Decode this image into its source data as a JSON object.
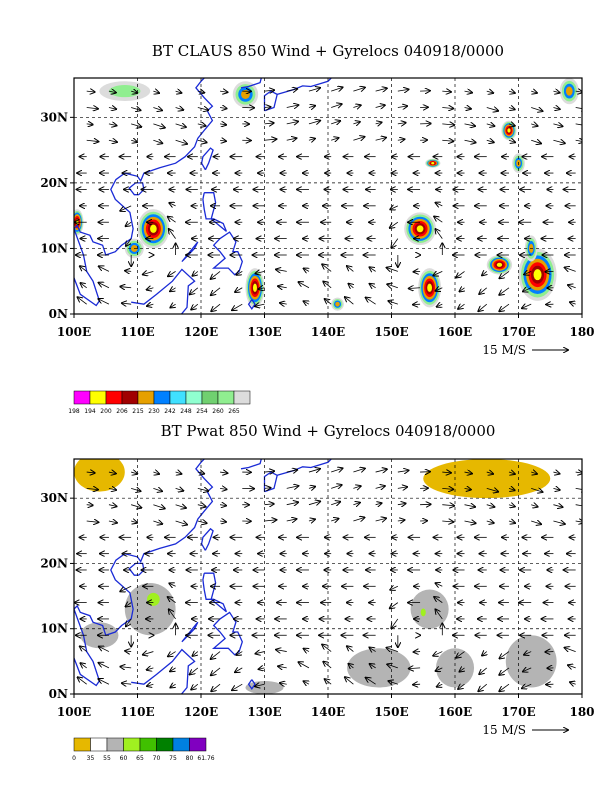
{
  "chart_data": [
    {
      "type": "heatmap",
      "title": "BT CLAUS 850 Wind + Gyrelocs 040918/0000",
      "x_ticks": [
        "100E",
        "110E",
        "120E",
        "130E",
        "140E",
        "150E",
        "160E",
        "170E",
        "180"
      ],
      "y_ticks": [
        "0N",
        "10N",
        "20N",
        "30N"
      ],
      "xlim": [
        100,
        180
      ],
      "ylim": [
        0,
        36
      ],
      "grid": true,
      "vector_scale_label": "15 M/S",
      "legend": {
        "values": [
          "198",
          "194",
          "200",
          "206",
          "215",
          "230",
          "242",
          "248",
          "254",
          "260",
          "265"
        ],
        "colors": [
          "#ff00ff",
          "#ffff00",
          "#ff0000",
          "#a00000",
          "#e6a000",
          "#0080ff",
          "#40e0ff",
          "#90ffd0",
          "#70d070",
          "#90ee90",
          "#dcdcdc"
        ]
      },
      "features": [
        {
          "lon": 112.5,
          "lat": 13,
          "rx": 2.5,
          "ry": 3,
          "level": "core"
        },
        {
          "lon": 128.5,
          "lat": 4,
          "rx": 1.5,
          "ry": 3,
          "level": "core"
        },
        {
          "lon": 141.5,
          "lat": 1.5,
          "rx": 1,
          "ry": 1,
          "level": "warm"
        },
        {
          "lon": 154.5,
          "lat": 13,
          "rx": 2.5,
          "ry": 2.5,
          "level": "core"
        },
        {
          "lon": 156,
          "lat": 4,
          "rx": 1.8,
          "ry": 3,
          "level": "core"
        },
        {
          "lon": 168.5,
          "lat": 28,
          "rx": 1.2,
          "ry": 1.5,
          "level": "core"
        },
        {
          "lon": 167,
          "lat": 7.5,
          "rx": 2,
          "ry": 1.5,
          "level": "core"
        },
        {
          "lon": 173,
          "lat": 6,
          "rx": 3,
          "ry": 4,
          "level": "core"
        },
        {
          "lon": 172,
          "lat": 10,
          "rx": 1,
          "ry": 2,
          "level": "warm"
        },
        {
          "lon": 156.5,
          "lat": 23,
          "rx": 1.2,
          "ry": 0.7,
          "level": "core"
        },
        {
          "lon": 170,
          "lat": 23,
          "rx": 1,
          "ry": 1.5,
          "level": "warm"
        },
        {
          "lon": 178,
          "lat": 34,
          "rx": 1.5,
          "ry": 2,
          "level": "warm"
        },
        {
          "lon": 108,
          "lat": 34,
          "rx": 4,
          "ry": 1.5,
          "level": "cool"
        },
        {
          "lon": 127,
          "lat": 33.5,
          "rx": 2,
          "ry": 2,
          "level": "warm"
        },
        {
          "lon": 100.5,
          "lat": 14,
          "rx": 1,
          "ry": 2,
          "level": "core"
        },
        {
          "lon": 109.5,
          "lat": 10,
          "rx": 1.5,
          "ry": 1.5,
          "level": "warm"
        }
      ]
    },
    {
      "type": "heatmap",
      "title": "BT Pwat 850 Wind + Gyrelocs 040918/0000",
      "x_ticks": [
        "100E",
        "110E",
        "120E",
        "130E",
        "140E",
        "150E",
        "160E",
        "170E",
        "180"
      ],
      "y_ticks": [
        "0N",
        "10N",
        "20N",
        "30N"
      ],
      "xlim": [
        100,
        180
      ],
      "ylim": [
        0,
        36
      ],
      "grid": true,
      "vector_scale_label": "15 M/S",
      "legend": {
        "values": [
          "0",
          "35",
          "55",
          "60",
          "65",
          "70",
          "75",
          "80",
          "61.76"
        ],
        "colors": [
          "#e6b800",
          "#ffffff",
          "#b4b4b4",
          "#a0f020",
          "#40c000",
          "#008000",
          "#0080e0",
          "#8000c0"
        ]
      },
      "features": [
        {
          "lon": 104,
          "lat": 34,
          "rx": 4,
          "ry": 3,
          "level": "dry"
        },
        {
          "lon": 165,
          "lat": 33,
          "rx": 10,
          "ry": 3,
          "level": "dry"
        },
        {
          "lon": 112,
          "lat": 13,
          "rx": 4,
          "ry": 4,
          "level": "moist"
        },
        {
          "lon": 112.5,
          "lat": 14.5,
          "rx": 1,
          "ry": 1,
          "level": "very-moist"
        },
        {
          "lon": 156,
          "lat": 13,
          "rx": 3,
          "ry": 3,
          "level": "moist"
        },
        {
          "lon": 155,
          "lat": 12.5,
          "rx": 0.4,
          "ry": 0.6,
          "level": "very-moist"
        },
        {
          "lon": 104,
          "lat": 9,
          "rx": 3,
          "ry": 2,
          "level": "moist"
        },
        {
          "lon": 148,
          "lat": 4,
          "rx": 5,
          "ry": 3,
          "level": "moist"
        },
        {
          "lon": 160,
          "lat": 4,
          "rx": 3,
          "ry": 3,
          "level": "moist"
        },
        {
          "lon": 172,
          "lat": 5,
          "rx": 4,
          "ry": 4,
          "level": "moist"
        },
        {
          "lon": 130,
          "lat": 1,
          "rx": 3,
          "ry": 1,
          "level": "moist"
        }
      ]
    }
  ]
}
